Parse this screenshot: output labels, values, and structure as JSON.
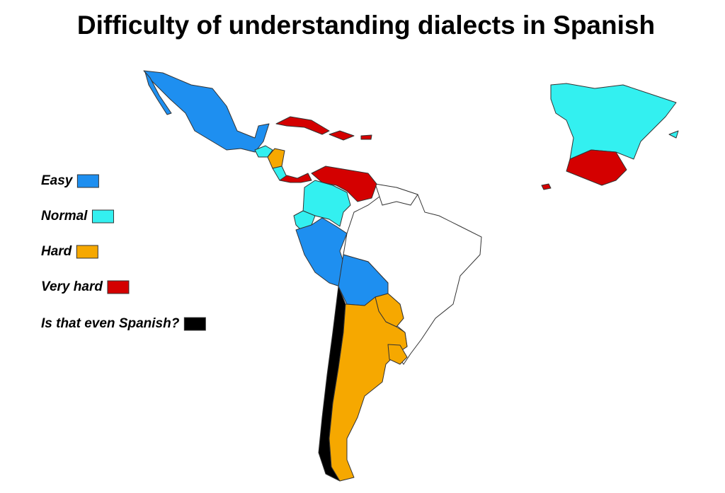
{
  "title": "Difficulty of understanding dialects in Spanish",
  "legend": [
    {
      "label": "Easy",
      "color": "#1e8ff0"
    },
    {
      "label": "Normal",
      "color": "#33f0f0"
    },
    {
      "label": "Hard",
      "color": "#f6a800"
    },
    {
      "label": "Very hard",
      "color": "#d40000"
    },
    {
      "label": "Is that even Spanish?",
      "color": "#000000"
    }
  ]
}
